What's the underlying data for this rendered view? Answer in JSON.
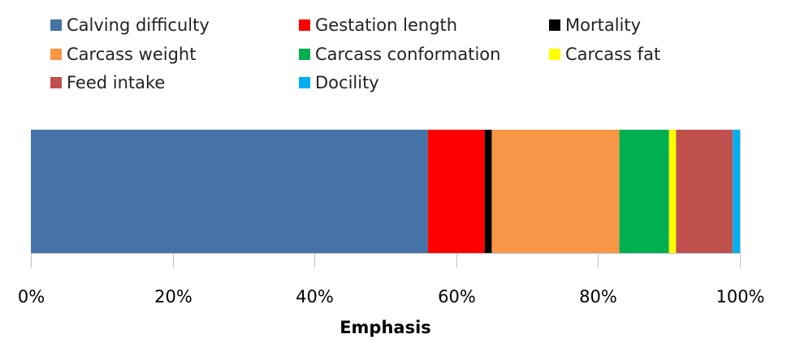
{
  "chart_data": {
    "type": "bar",
    "orientation": "horizontal",
    "stacked": "100%",
    "xlabel": "Emphasis",
    "ylabel": "",
    "xlim": [
      0,
      100
    ],
    "x_ticks": [
      "0%",
      "20%",
      "40%",
      "60%",
      "80%",
      "100%"
    ],
    "grid": true,
    "legend_position": "top",
    "series": [
      {
        "name": "Calving difficulty",
        "value": 56,
        "color": "#4572A7"
      },
      {
        "name": "Gestation length",
        "value": 8,
        "color": "#FF0000"
      },
      {
        "name": "Mortality",
        "value": 1,
        "color": "#000000"
      },
      {
        "name": "Carcass weight",
        "value": 18,
        "color": "#F79646"
      },
      {
        "name": "Carcass conformation",
        "value": 7,
        "color": "#00B050"
      },
      {
        "name": "Carcass fat",
        "value": 1,
        "color": "#FFFF00"
      },
      {
        "name": "Feed intake",
        "value": 8,
        "color": "#C0504D"
      },
      {
        "name": "Docility",
        "value": 1,
        "color": "#00B0F0"
      }
    ]
  }
}
